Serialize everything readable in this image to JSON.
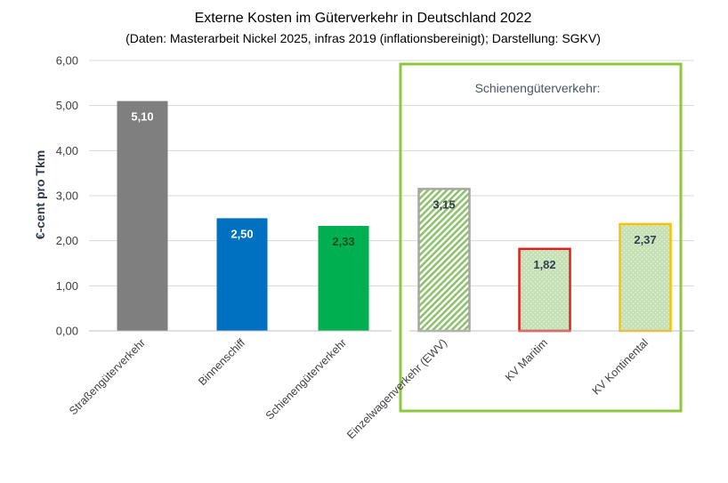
{
  "chart_data": {
    "type": "bar",
    "title": "Externe Kosten im Güterverkehr in Deutschland 2022",
    "subtitle": "(Daten: Masterarbeit Nickel 2025, infras 2019 (inflationsbereinigt); Darstellung: SGKV)",
    "ylabel": "€-cent pro Tkm",
    "xlabel": "",
    "ylim": [
      0,
      6
    ],
    "yticks": [
      "0,00",
      "1,00",
      "2,00",
      "3,00",
      "4,00",
      "5,00",
      "6,00"
    ],
    "categories": [
      "Straßengüterverkehr",
      "Binnenschiff",
      "Schienengüterverkehr",
      "Einzelwagenverkehr (EWV)",
      "KV Maritim",
      "KV Kontinental"
    ],
    "values": [
      5.1,
      2.5,
      2.33,
      3.15,
      1.82,
      2.37
    ],
    "value_labels": [
      "5,10",
      "2,50",
      "2,33",
      "3,15",
      "1,82",
      "2,37"
    ],
    "bar_styles": [
      {
        "fill": "#7f7f7f",
        "outline": "none",
        "pattern": "solid",
        "label_color": "#ffffff"
      },
      {
        "fill": "#0070c0",
        "outline": "none",
        "pattern": "solid",
        "label_color": "#ffffff"
      },
      {
        "fill": "#00b050",
        "outline": "none",
        "pattern": "solid",
        "label_color": "#1f4e1f"
      },
      {
        "fill": "#a9d18e",
        "outline": "#a6a6a6",
        "pattern": "diagonal",
        "label_color": "#333f50"
      },
      {
        "fill": "#c5e0b4",
        "outline": "#e02020",
        "pattern": "dotted",
        "label_color": "#333f50"
      },
      {
        "fill": "#c5e0b4",
        "outline": "#ffc000",
        "pattern": "dotted",
        "label_color": "#333f50"
      }
    ],
    "grid": true,
    "legend": "none",
    "annotation": {
      "text": "Schienengüterverkehr:",
      "box_color": "#8dc63f",
      "applies_to": [
        "Einzelwagenverkehr (EWV)",
        "KV Maritim",
        "KV Kontinental"
      ]
    }
  }
}
